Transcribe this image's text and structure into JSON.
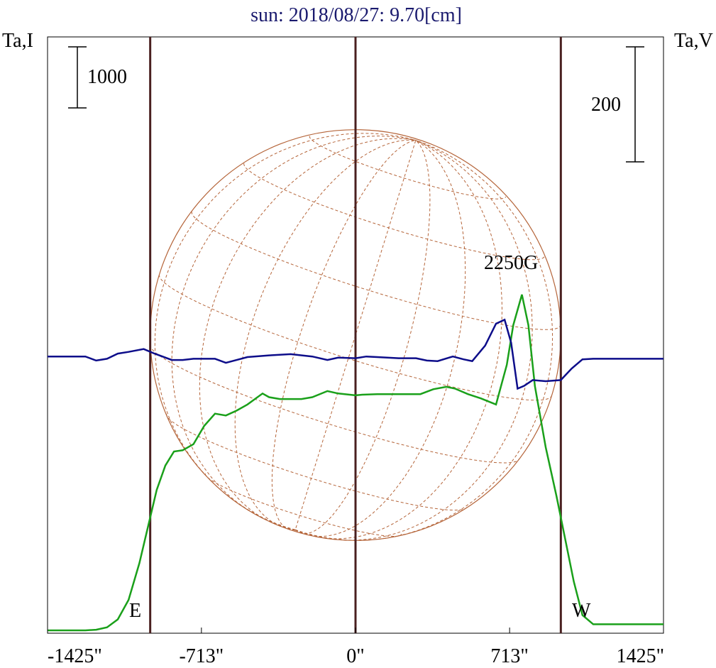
{
  "chart_data": {
    "type": "line",
    "title": "sun: 2018/08/27: 9.70[cm]",
    "left_axis_label": "Ta,I",
    "right_axis_label": "Ta,V",
    "x_ticks": [
      {
        "value": -1425,
        "label": "-1425\""
      },
      {
        "value": -713,
        "label": "-713\""
      },
      {
        "value": 0,
        "label": "0\""
      },
      {
        "value": 713,
        "label": "713\""
      },
      {
        "value": 1425,
        "label": "1425\""
      }
    ],
    "xlim": [
      -1425,
      1425
    ],
    "vertical_markers": [
      -950,
      0,
      950
    ],
    "scale_bars": {
      "intensity": {
        "label": "1000",
        "value": 1000
      },
      "polarization": {
        "label": "200",
        "value": 200
      }
    },
    "annotations": {
      "east": "E",
      "west": "W",
      "field": "2250G"
    },
    "solar_disk": {
      "center_arcsec": [
        0,
        0
      ],
      "radius_arcsec": 950
    },
    "colors": {
      "intensity": "#1aa01a",
      "polarization": "#0d0d8a",
      "markers": "#4a2020",
      "disk": "#b5653a"
    },
    "series": [
      {
        "id": "intensity",
        "points": [
          [
            -1425,
            0
          ],
          [
            -1250,
            0
          ],
          [
            -1200,
            10
          ],
          [
            -1150,
            50
          ],
          [
            -1100,
            180
          ],
          [
            -1050,
            500
          ],
          [
            -1000,
            1100
          ],
          [
            -960,
            1700
          ],
          [
            -920,
            2300
          ],
          [
            -880,
            2700
          ],
          [
            -840,
            2930
          ],
          [
            -800,
            2950
          ],
          [
            -750,
            3050
          ],
          [
            -700,
            3350
          ],
          [
            -650,
            3550
          ],
          [
            -600,
            3520
          ],
          [
            -550,
            3600
          ],
          [
            -500,
            3700
          ],
          [
            -430,
            3880
          ],
          [
            -400,
            3820
          ],
          [
            -350,
            3790
          ],
          [
            -250,
            3790
          ],
          [
            -200,
            3820
          ],
          [
            -130,
            3920
          ],
          [
            -80,
            3880
          ],
          [
            0,
            3850
          ],
          [
            30,
            3860
          ],
          [
            100,
            3870
          ],
          [
            300,
            3870
          ],
          [
            360,
            3950
          ],
          [
            420,
            3990
          ],
          [
            460,
            3960
          ],
          [
            520,
            3870
          ],
          [
            580,
            3800
          ],
          [
            650,
            3700
          ],
          [
            700,
            4350
          ],
          [
            730,
            5000
          ],
          [
            770,
            5500
          ],
          [
            800,
            5000
          ],
          [
            830,
            4000
          ],
          [
            880,
            3000
          ],
          [
            930,
            2200
          ],
          [
            970,
            1500
          ],
          [
            1010,
            800
          ],
          [
            1050,
            250
          ],
          [
            1100,
            100
          ],
          [
            1425,
            100
          ]
        ]
      },
      {
        "id": "polarization",
        "points": [
          [
            -1425,
            1
          ],
          [
            -1250,
            1
          ],
          [
            -1200,
            -6
          ],
          [
            -1150,
            -3
          ],
          [
            -1100,
            6
          ],
          [
            -1050,
            9
          ],
          [
            -980,
            14
          ],
          [
            -930,
            6
          ],
          [
            -850,
            -5
          ],
          [
            -800,
            -5
          ],
          [
            -750,
            -3
          ],
          [
            -650,
            -3
          ],
          [
            -600,
            -10
          ],
          [
            -550,
            -5
          ],
          [
            -500,
            0
          ],
          [
            -400,
            3
          ],
          [
            -300,
            5
          ],
          [
            -200,
            1
          ],
          [
            -130,
            -5
          ],
          [
            -80,
            -1
          ],
          [
            0,
            -2
          ],
          [
            50,
            1
          ],
          [
            100,
            0
          ],
          [
            200,
            -2
          ],
          [
            280,
            -2
          ],
          [
            330,
            -6
          ],
          [
            380,
            -7
          ],
          [
            450,
            1
          ],
          [
            500,
            -4
          ],
          [
            540,
            -7
          ],
          [
            600,
            20
          ],
          [
            650,
            58
          ],
          [
            690,
            65
          ],
          [
            720,
            25
          ],
          [
            750,
            -55
          ],
          [
            780,
            -50
          ],
          [
            820,
            -40
          ],
          [
            880,
            -42
          ],
          [
            950,
            -40
          ],
          [
            1000,
            -20
          ],
          [
            1050,
            -4
          ],
          [
            1100,
            -3
          ],
          [
            1425,
            -3
          ]
        ]
      }
    ]
  }
}
